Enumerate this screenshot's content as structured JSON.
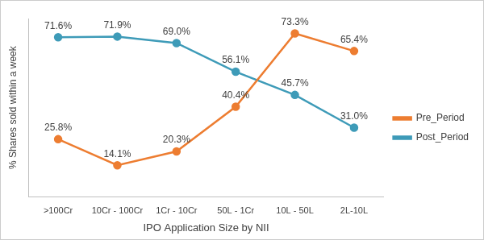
{
  "chart_data": {
    "type": "line",
    "x_label": "IPO Application Size by NII",
    "y_label": "% Shares sold within a week",
    "categories": [
      ">100Cr",
      "10Cr - 100Cr",
      "1Cr - 10Cr",
      "50L - 1Cr",
      "10L - 50L",
      "2L-10L"
    ],
    "series": [
      {
        "name": "Pre_Period",
        "color": "#ed7d31",
        "marker": "circle",
        "values": [
          25.8,
          14.1,
          20.3,
          40.4,
          73.3,
          65.4
        ],
        "value_labels": [
          "25.8%",
          "14.1%",
          "20.3%",
          "40.4%",
          "73.3%",
          "65.4%"
        ]
      },
      {
        "name": "Post_Period",
        "color": "#3e9bb8",
        "marker": "circle",
        "values": [
          71.6,
          71.9,
          69.0,
          56.1,
          45.7,
          31.0
        ],
        "value_labels": [
          "71.6%",
          "71.9%",
          "69.0%",
          "56.1%",
          "45.7%",
          "31.0%"
        ]
      }
    ],
    "ylim": [
      0,
      80
    ],
    "grid": false,
    "legend": "right",
    "data_labels": true,
    "tick_labels": "x"
  }
}
